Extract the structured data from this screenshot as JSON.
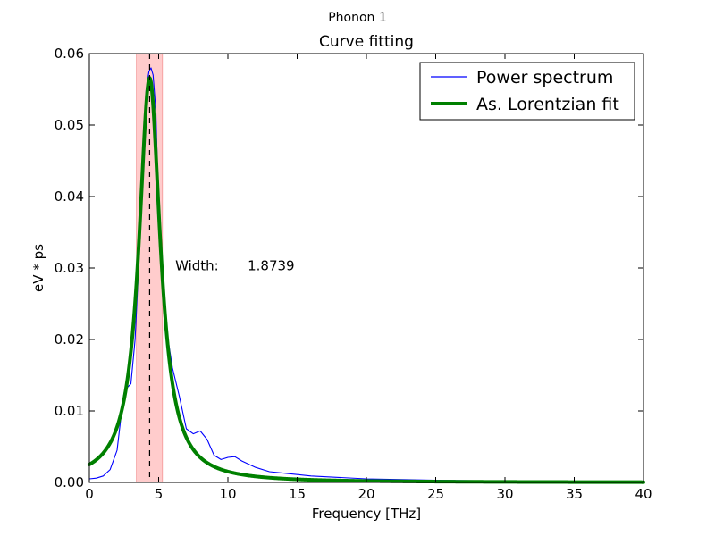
{
  "figure": {
    "suptitle": "Phonon 1"
  },
  "chart_data": {
    "type": "line",
    "title": "Curve fitting",
    "xlabel": "Frequency [THz]",
    "ylabel": "eV * ps",
    "xlim": [
      0,
      40
    ],
    "ylim": [
      0,
      0.06
    ],
    "xticks": [
      0,
      5,
      10,
      15,
      20,
      25,
      30,
      35,
      40
    ],
    "xtick_labels": [
      "0",
      "5",
      "10",
      "15",
      "20",
      "25",
      "30",
      "35",
      "40"
    ],
    "yticks": [
      0,
      0.01,
      0.02,
      0.03,
      0.04,
      0.05,
      0.06
    ],
    "ytick_labels": [
      "0.00",
      "0.01",
      "0.02",
      "0.03",
      "0.04",
      "0.05",
      "0.06"
    ],
    "grid": false,
    "legend_position": "top-right",
    "series": [
      {
        "name": "Power spectrum",
        "color": "#0000ff",
        "line_style": "thin solid",
        "x": [
          0,
          0.5,
          1.0,
          1.5,
          2.0,
          2.3,
          2.5,
          2.7,
          3.0,
          3.3,
          3.6,
          3.9,
          4.1,
          4.3,
          4.45,
          4.6,
          4.8,
          5.0,
          5.3,
          5.6,
          6.0,
          6.5,
          7.0,
          7.5,
          8.0,
          8.5,
          9.0,
          9.5,
          10.0,
          10.5,
          11.0,
          12.0,
          13.0,
          14.0,
          15.0,
          16.0,
          18.0,
          20.0,
          25.0,
          30.0,
          35.0,
          40.0
        ],
        "y": [
          0.0005,
          0.0006,
          0.0009,
          0.0018,
          0.0045,
          0.0095,
          0.0125,
          0.0132,
          0.0138,
          0.02,
          0.032,
          0.048,
          0.055,
          0.0575,
          0.058,
          0.057,
          0.052,
          0.038,
          0.027,
          0.021,
          0.016,
          0.012,
          0.0075,
          0.0068,
          0.0072,
          0.006,
          0.0038,
          0.0032,
          0.0035,
          0.0036,
          0.003,
          0.0021,
          0.0015,
          0.0013,
          0.0011,
          0.0009,
          0.0007,
          0.0005,
          0.0003,
          0.0002,
          0.00015,
          0.0001
        ]
      },
      {
        "name": "As. Lorentzian fit",
        "color": "#008000",
        "line_style": "thick solid",
        "peak_center": 4.35,
        "peak_height": 0.0566,
        "half_width": 0.937,
        "x": [
          0,
          1,
          2,
          2.5,
          3,
          3.5,
          4,
          4.35,
          4.7,
          5,
          5.5,
          6,
          7,
          8,
          9,
          10,
          12,
          15,
          20,
          25,
          30,
          35,
          40
        ],
        "y": [
          0.0011,
          0.0021,
          0.0055,
          0.0115,
          0.0185,
          0.031,
          0.0505,
          0.0566,
          0.051,
          0.0395,
          0.0255,
          0.0175,
          0.0085,
          0.005,
          0.0035,
          0.0026,
          0.0016,
          0.0011,
          0.0007,
          0.0005,
          0.0004,
          0.0003,
          0.0002
        ]
      }
    ],
    "annotations": {
      "shaded_band": {
        "x_start": 3.4,
        "x_end": 5.28,
        "color": "#ffcccc"
      },
      "peak_line": {
        "x": 4.35,
        "style": "dashed",
        "color": "#000000"
      },
      "width_label": "Width:",
      "width_value": "1.8739",
      "width_text_at": {
        "x": 6.2,
        "y": 0.0297
      }
    }
  }
}
